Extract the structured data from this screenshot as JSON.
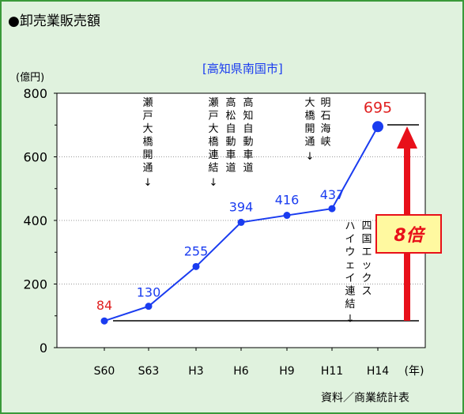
{
  "header": {
    "title": "●卸売業販売額"
  },
  "footer": {
    "source": "資料／商業統計表"
  },
  "chart_data": {
    "type": "line",
    "subtitle": "[高知県南国市]",
    "ylabel": "(億円)",
    "xlabel": "(年)",
    "categories": [
      "S60",
      "S63",
      "H3",
      "H6",
      "H9",
      "H11",
      "H14"
    ],
    "values": [
      84,
      130,
      255,
      394,
      416,
      437,
      695
    ],
    "ylim": [
      0,
      800
    ],
    "yticks": [
      "0",
      "200",
      "400",
      "600",
      "800"
    ],
    "grid": true,
    "value_labels": [
      "84",
      "130",
      "255",
      "394",
      "416",
      "437",
      "695"
    ],
    "colors": {
      "line": "#1a3cf0",
      "first_label": "#e02020",
      "last_label": "#e02020",
      "arrow": "#e8101a",
      "callout_bg": "#fff9a0"
    },
    "annotations": [
      {
        "id": "seto",
        "lines": [
          "瀬戸大橋開通",
          "↓"
        ]
      },
      {
        "id": "setochuo",
        "lines": [
          "高知自動車道",
          "高松自動車道",
          "瀬戸大橋連結",
          "↓"
        ]
      },
      {
        "id": "akashi",
        "lines": [
          "明石海峡",
          "大橋開通",
          "↓"
        ]
      },
      {
        "id": "shikoku",
        "lines": [
          "四国エックス",
          "ハイウェイ連結",
          "↓"
        ]
      }
    ],
    "callout": "8倍"
  }
}
